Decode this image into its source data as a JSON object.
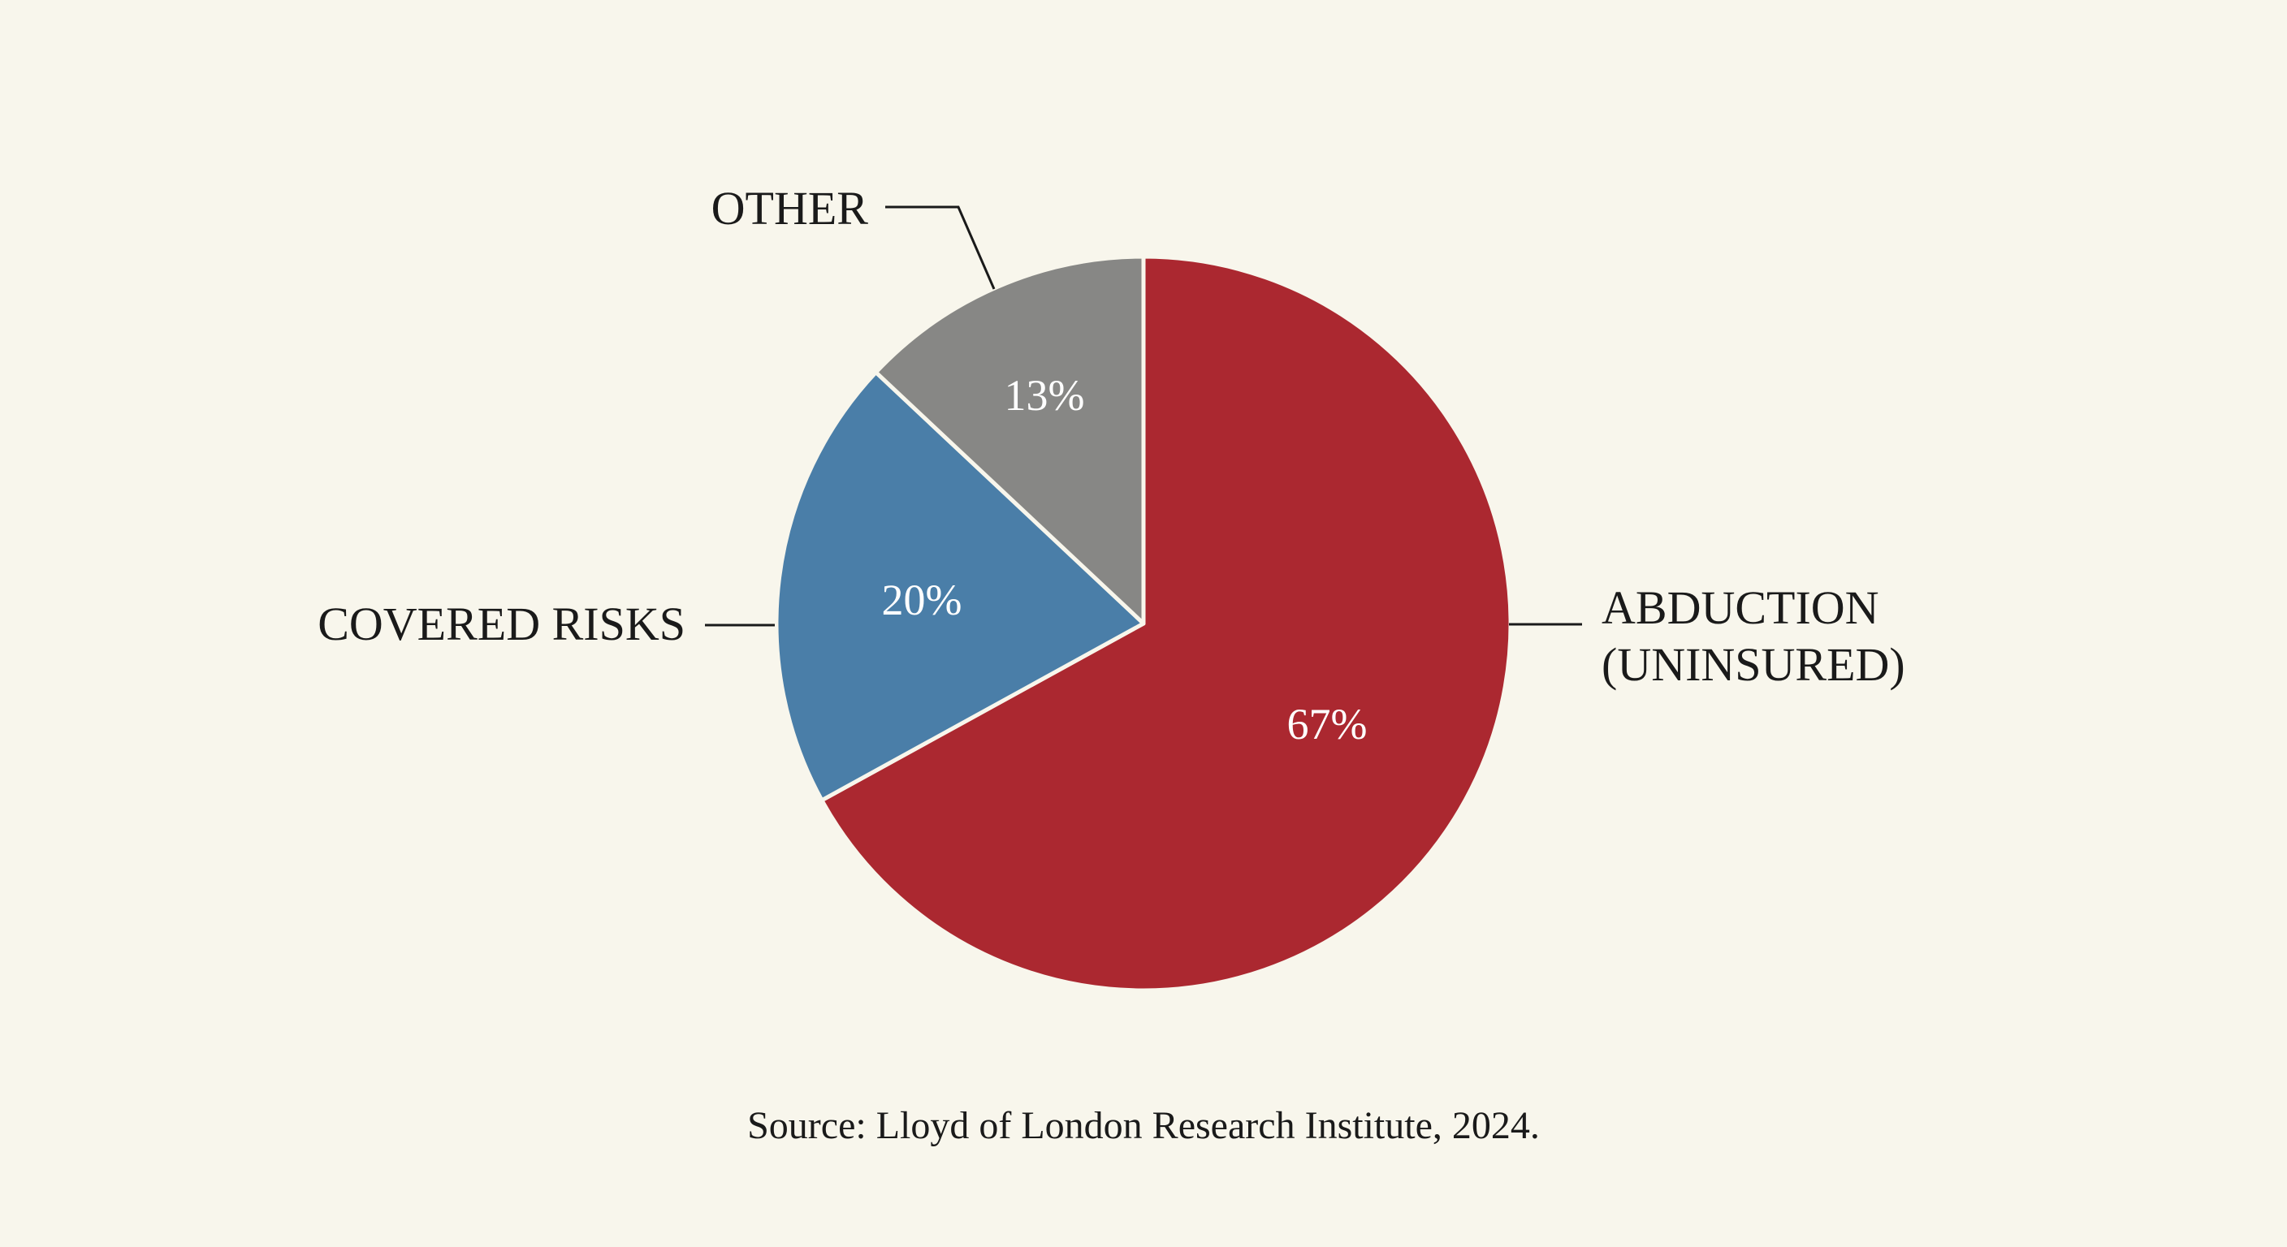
{
  "chart_data": {
    "type": "pie",
    "start_angle": "12 o'clock, clockwise",
    "slices": [
      {
        "label_lines": [
          "ABDUCTION",
          "(UNINSURED)"
        ],
        "value": 67,
        "value_label": "67%",
        "color": "#ab2830"
      },
      {
        "label_lines": [
          "COVERED RISKS"
        ],
        "value": 20,
        "value_label": "20%",
        "color": "#4a7ea8"
      },
      {
        "label_lines": [
          "OTHER"
        ],
        "value": 13,
        "value_label": "13%",
        "color": "#878785"
      }
    ],
    "source": "Source: Lloyd of London Research Institute, 2024.",
    "background": "#f8f6ec"
  }
}
